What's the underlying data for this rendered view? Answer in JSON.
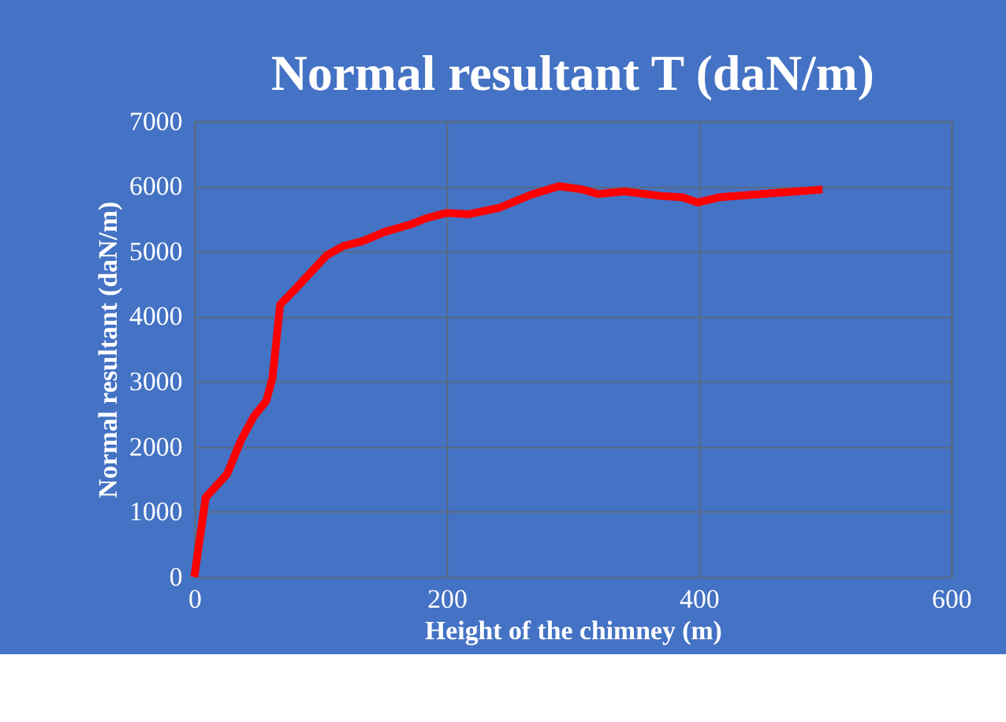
{
  "chart_data": {
    "type": "line",
    "title": "Normal resultant T (daN/m)",
    "xlabel": "Height of the chimney (m)",
    "ylabel": "Normal resultant  (daN/m)",
    "x": [
      0,
      9,
      26,
      37,
      47,
      57,
      62,
      68,
      80,
      105,
      118,
      134,
      151,
      171,
      184,
      200,
      217,
      242,
      267,
      289,
      308,
      320,
      341,
      370,
      387,
      399,
      416,
      453,
      498
    ],
    "series": [
      {
        "color": "#ff0000",
        "values": [
          0,
          1220,
          1580,
          2100,
          2460,
          2700,
          3060,
          4180,
          4420,
          4940,
          5080,
          5160,
          5300,
          5410,
          5510,
          5590,
          5570,
          5670,
          5870,
          6000,
          5950,
          5880,
          5920,
          5850,
          5830,
          5750,
          5830,
          5885,
          5950
        ]
      }
    ],
    "xlim": [
      0,
      600
    ],
    "xticks": [
      0,
      200,
      400,
      600
    ],
    "ylim": [
      0,
      7000
    ],
    "yticks": [
      0,
      1000,
      2000,
      3000,
      4000,
      5000,
      6000,
      7000
    ],
    "grid": true,
    "marker": "none",
    "line_style": "solid"
  }
}
